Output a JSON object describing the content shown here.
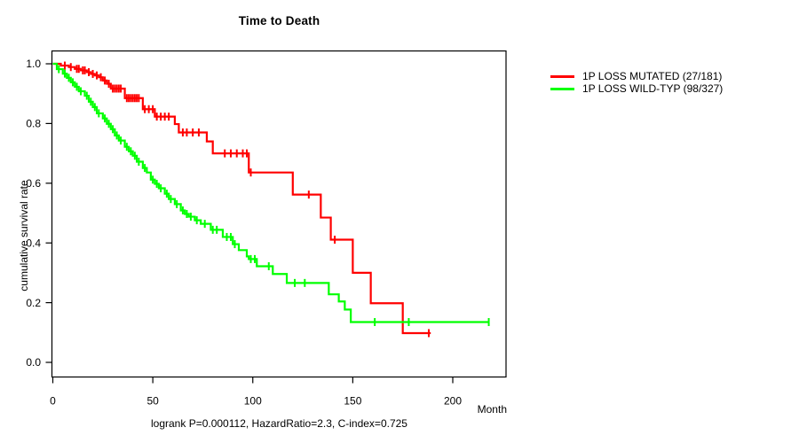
{
  "title": "Time to Death",
  "y_axis": {
    "label": "cumulative survival rate",
    "ticks": [
      "0.0",
      "0.2",
      "0.4",
      "0.6",
      "0.8",
      "1.0"
    ]
  },
  "x_axis": {
    "unit_label": "Month",
    "ticks": [
      "0",
      "50",
      "100",
      "150",
      "200"
    ]
  },
  "caption": "logrank P=0.000112, HazardRatio=2.3, C-index=0.725",
  "legend": {
    "items": [
      {
        "label": "1P LOSS MUTATED (27/181)",
        "color": "#ff0000"
      },
      {
        "label": "1P LOSS WILD-TYP (98/327)",
        "color": "#00ff00"
      }
    ]
  },
  "chart_data": {
    "type": "line",
    "subtype": "kaplan-meier-step",
    "title": "Time to Death",
    "xlabel": "Month",
    "ylabel": "cumulative survival rate",
    "xlim": [
      0,
      227
    ],
    "ylim": [
      0,
      1
    ],
    "x_ticks": [
      0,
      50,
      100,
      150,
      200
    ],
    "y_ticks": [
      0,
      0.2,
      0.4,
      0.6,
      0.8,
      1
    ],
    "grid": false,
    "legend_position": "right-outside",
    "annotation": "logrank P=0.000112, HazardRatio=2.3, C-index=0.725",
    "series": [
      {
        "id": "mutated",
        "name": "1P LOSS MUTATED (27/181)",
        "color": "#ff0000",
        "events_over_n": "27/181",
        "points": [
          [
            0,
            1
          ],
          [
            4,
            0.994
          ],
          [
            8,
            0.989
          ],
          [
            11,
            0.983
          ],
          [
            14,
            0.978
          ],
          [
            17,
            0.972
          ],
          [
            19,
            0.966
          ],
          [
            21,
            0.961
          ],
          [
            23,
            0.955
          ],
          [
            25,
            0.944
          ],
          [
            27,
            0.933
          ],
          [
            29,
            0.917
          ],
          [
            36,
            0.885
          ],
          [
            45,
            0.848
          ],
          [
            51,
            0.823
          ],
          [
            61,
            0.798
          ],
          [
            63,
            0.77
          ],
          [
            77,
            0.74
          ],
          [
            80,
            0.7
          ],
          [
            98,
            0.636
          ],
          [
            120,
            0.562
          ],
          [
            134,
            0.485
          ],
          [
            139,
            0.411
          ],
          [
            150,
            0.3
          ],
          [
            159,
            0.198
          ],
          [
            175,
            0.098
          ]
        ],
        "end_month": 189,
        "censors": [
          [
            6,
            0.994
          ],
          [
            9,
            0.989
          ],
          [
            12,
            0.983
          ],
          [
            13,
            0.983
          ],
          [
            15,
            0.978
          ],
          [
            16,
            0.978
          ],
          [
            18,
            0.972
          ],
          [
            20,
            0.966
          ],
          [
            22,
            0.961
          ],
          [
            24,
            0.955
          ],
          [
            26,
            0.944
          ],
          [
            28,
            0.933
          ],
          [
            30,
            0.917
          ],
          [
            31,
            0.917
          ],
          [
            32,
            0.917
          ],
          [
            33,
            0.917
          ],
          [
            34,
            0.917
          ],
          [
            37,
            0.885
          ],
          [
            38,
            0.885
          ],
          [
            39,
            0.885
          ],
          [
            40,
            0.885
          ],
          [
            41,
            0.885
          ],
          [
            42,
            0.885
          ],
          [
            43,
            0.885
          ],
          [
            46,
            0.848
          ],
          [
            48,
            0.848
          ],
          [
            50,
            0.848
          ],
          [
            52,
            0.823
          ],
          [
            54,
            0.823
          ],
          [
            56,
            0.823
          ],
          [
            58,
            0.823
          ],
          [
            65,
            0.77
          ],
          [
            67,
            0.77
          ],
          [
            70,
            0.77
          ],
          [
            73,
            0.77
          ],
          [
            86,
            0.7
          ],
          [
            89,
            0.7
          ],
          [
            92,
            0.7
          ],
          [
            95,
            0.7
          ],
          [
            97,
            0.7
          ],
          [
            99,
            0.636
          ],
          [
            128,
            0.562
          ],
          [
            141,
            0.411
          ],
          [
            188,
            0.098
          ]
        ]
      },
      {
        "id": "wildtype",
        "name": "1P LOSS WILD-TYP (98/327)",
        "color": "#00ff00",
        "events_over_n": "98/327",
        "points": [
          [
            0,
            1
          ],
          [
            2,
            0.982
          ],
          [
            5,
            0.967
          ],
          [
            7,
            0.953
          ],
          [
            9,
            0.938
          ],
          [
            11,
            0.923
          ],
          [
            13,
            0.908
          ],
          [
            16,
            0.893
          ],
          [
            18,
            0.873
          ],
          [
            20,
            0.855
          ],
          [
            22,
            0.834
          ],
          [
            25,
            0.817
          ],
          [
            27,
            0.799
          ],
          [
            29,
            0.781
          ],
          [
            31,
            0.76
          ],
          [
            33,
            0.743
          ],
          [
            36,
            0.722
          ],
          [
            38,
            0.707
          ],
          [
            40,
            0.692
          ],
          [
            42,
            0.672
          ],
          [
            45,
            0.651
          ],
          [
            47,
            0.636
          ],
          [
            49,
            0.612
          ],
          [
            51,
            0.598
          ],
          [
            53,
            0.583
          ],
          [
            56,
            0.565
          ],
          [
            58,
            0.547
          ],
          [
            61,
            0.53
          ],
          [
            64,
            0.509
          ],
          [
            66,
            0.497
          ],
          [
            68,
            0.488
          ],
          [
            71,
            0.476
          ],
          [
            74,
            0.464
          ],
          [
            79,
            0.444
          ],
          [
            85,
            0.42
          ],
          [
            90,
            0.396
          ],
          [
            93,
            0.376
          ],
          [
            97,
            0.355
          ],
          [
            98,
            0.346
          ],
          [
            102,
            0.322
          ],
          [
            110,
            0.296
          ],
          [
            117,
            0.266
          ],
          [
            138,
            0.228
          ],
          [
            143,
            0.204
          ],
          [
            146,
            0.177
          ],
          [
            149,
            0.135
          ]
        ],
        "end_month": 218,
        "censors": [
          [
            3,
            0.982
          ],
          [
            6,
            0.967
          ],
          [
            8,
            0.953
          ],
          [
            10,
            0.938
          ],
          [
            12,
            0.923
          ],
          [
            14,
            0.908
          ],
          [
            17,
            0.893
          ],
          [
            19,
            0.873
          ],
          [
            21,
            0.855
          ],
          [
            23,
            0.834
          ],
          [
            26,
            0.817
          ],
          [
            28,
            0.799
          ],
          [
            30,
            0.781
          ],
          [
            32,
            0.76
          ],
          [
            34,
            0.743
          ],
          [
            37,
            0.722
          ],
          [
            39,
            0.707
          ],
          [
            41,
            0.692
          ],
          [
            43,
            0.672
          ],
          [
            46,
            0.651
          ],
          [
            50,
            0.612
          ],
          [
            52,
            0.598
          ],
          [
            54,
            0.583
          ],
          [
            57,
            0.565
          ],
          [
            59,
            0.547
          ],
          [
            62,
            0.53
          ],
          [
            65,
            0.509
          ],
          [
            67,
            0.497
          ],
          [
            69,
            0.488
          ],
          [
            72,
            0.476
          ],
          [
            76,
            0.464
          ],
          [
            80,
            0.444
          ],
          [
            82,
            0.444
          ],
          [
            87,
            0.42
          ],
          [
            89,
            0.42
          ],
          [
            91,
            0.396
          ],
          [
            99,
            0.346
          ],
          [
            101,
            0.346
          ],
          [
            108,
            0.322
          ],
          [
            121,
            0.266
          ],
          [
            126,
            0.266
          ],
          [
            161,
            0.135
          ],
          [
            178,
            0.135
          ],
          [
            218,
            0.135
          ]
        ]
      }
    ]
  }
}
